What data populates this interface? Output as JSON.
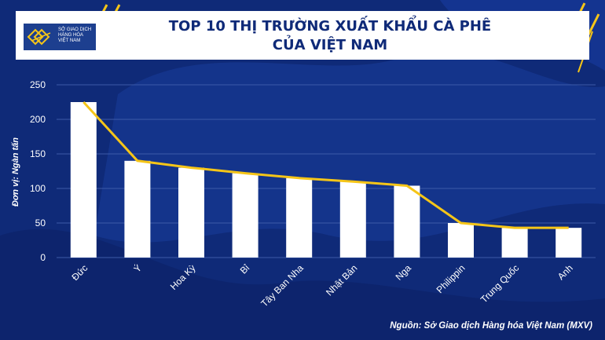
{
  "header": {
    "title_line1": "TOP 10 THỊ TRƯỜNG XUẤT KHẨU CÀ PHÊ",
    "title_line2": "CỦA VIỆT NAM"
  },
  "logo": {
    "text_line1": "SỞ GIAO DỊCH",
    "text_line2": "HÀNG HÓA",
    "text_line3": "VIỆT NAM"
  },
  "chart_data": {
    "type": "bar",
    "title": "TOP 10 THỊ TRƯỜNG XUẤT KHẨU CÀ PHÊ CỦA VIỆT NAM",
    "ylabel": "Đơn vị: Ngàn tấn",
    "categories": [
      "Đức",
      "Ý",
      "Hoa Kỳ",
      "Bỉ",
      "Tây Ban Nha",
      "Nhật Bản",
      "Nga",
      "Philippin",
      "Trung Quốc",
      "Anh"
    ],
    "values": [
      225,
      140,
      130,
      122,
      115,
      110,
      104,
      50,
      43,
      43
    ],
    "line_overlay": [
      225,
      140,
      130,
      122,
      115,
      110,
      104,
      50,
      43,
      43
    ],
    "ylim": [
      0,
      250
    ],
    "yticks": [
      0,
      50,
      100,
      150,
      200,
      250
    ],
    "grid": true,
    "colors": {
      "bars": "#ffffff",
      "line": "#f5c518",
      "grid": "#3d5aa8",
      "text": "#ffffff"
    }
  },
  "footer": {
    "source": "Nguồn: Sở Giao dịch Hàng hóa Việt Nam (MXV)"
  }
}
